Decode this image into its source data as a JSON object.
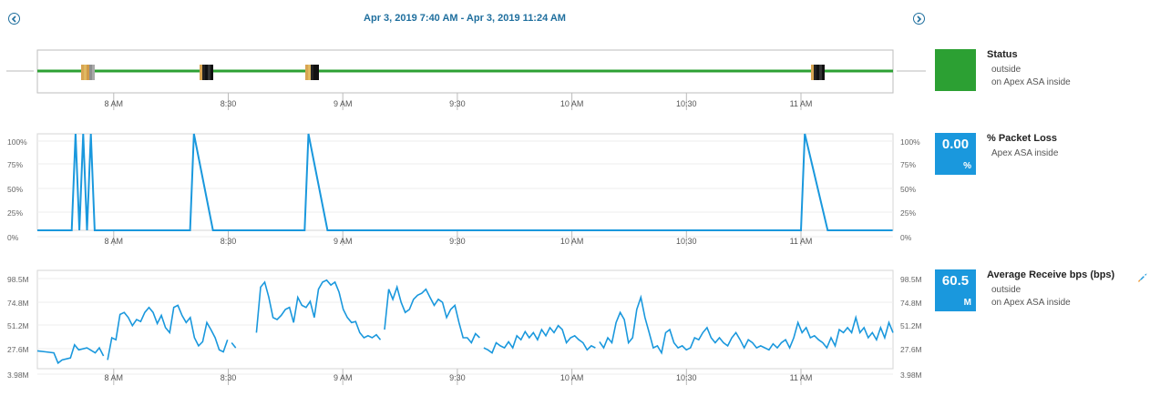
{
  "header": {
    "range": "Apr 3, 2019 7:40 AM - Apr 3, 2019 11:24 AM"
  },
  "icons": {
    "prev": "chevron-left-icon",
    "next": "chevron-right-icon",
    "rocket": "rocket-icon"
  },
  "colors": {
    "status_ok": "#2ca033",
    "accent": "#1a98dd",
    "line": "#1a98dd",
    "title": "#1f6f9e"
  },
  "x_ticks": [
    "8 AM",
    "8:30",
    "9 AM",
    "9:30",
    "10 AM",
    "10:30",
    "11 AM"
  ],
  "status_panel": {
    "title": "Status",
    "lines": [
      "outside",
      "on Apex ASA inside"
    ],
    "swatch_color": "#2ca033"
  },
  "packet_panel": {
    "title": "% Packet Loss",
    "value": "0.00",
    "unit": "%",
    "lines": [
      "Apex ASA inside"
    ],
    "y_ticks": [
      "100%",
      "75%",
      "50%",
      "25%",
      "0%"
    ]
  },
  "bps_panel": {
    "title": "Average Receive bps (bps)",
    "value": "60.5",
    "unit": "M",
    "lines": [
      "outside",
      "on Apex ASA inside"
    ],
    "y_ticks": [
      "98.5M",
      "74.8M",
      "51.2M",
      "27.6M",
      "3.98M"
    ]
  },
  "chart_data": [
    {
      "type": "line",
      "title": "Status",
      "x_range": [
        "7:40",
        "11:24"
      ],
      "series": [
        {
          "values": []
        }
      ],
      "events_minutes_after_7_40": []
    },
    {
      "type": "line",
      "title": "% Packet Loss",
      "ylim": [
        0,
        100
      ],
      "x": [
        "7:40",
        "7:49",
        "7:50",
        "7:51",
        "7:52",
        "7:53",
        "7:54",
        "7:55",
        "8:20",
        "8:21",
        "8:26",
        "8:50",
        "8:51",
        "8:56",
        "9:59",
        "11:00",
        "11:01",
        "11:07",
        "11:24"
      ],
      "series": [
        {
          "name": "% Packet Loss",
          "values": [
            0,
            0,
            100,
            0,
            100,
            0,
            100,
            0,
            0,
            100,
            0,
            0,
            100,
            0,
            0,
            0,
            100,
            0,
            0
          ]
        }
      ]
    },
    {
      "type": "line",
      "title": "Average Receive bps (bps)",
      "ylim": [
        3980000,
        98500000
      ],
      "series": [
        {
          "name": "Average Receive bps",
          "values": []
        }
      ]
    }
  ]
}
